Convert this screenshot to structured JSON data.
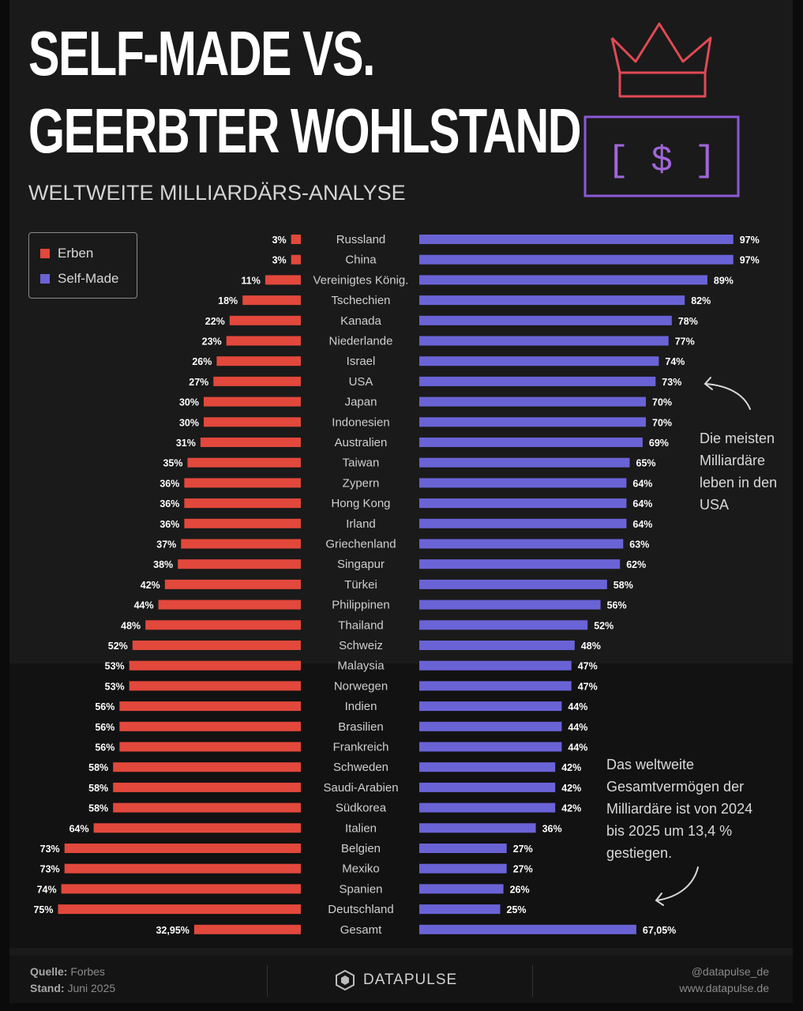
{
  "header": {
    "title_line1": "SELF-MADE VS.",
    "title_line2": "GEERBTER WOHLSTAND",
    "subtitle": "WELTWEITE MILLIARDÄRS-ANALYSE",
    "icon_top": "crown-icon",
    "icon_bottom": "money-bill-icon",
    "dollar_glyph": "[ $ ]"
  },
  "colors": {
    "erben": "#e2483b",
    "self_made": "#6a63d6",
    "crown": "#e04a55",
    "bill": "#8a5ad6"
  },
  "legend": {
    "erben": "Erben",
    "self_made": "Self-Made"
  },
  "chart_data": {
    "type": "bar",
    "orientation": "horizontal-diverging",
    "title": "SELF-MADE VS. GEERBTER WOHLSTAND",
    "subtitle": "WELTWEITE MILLIARDÄRS-ANALYSE",
    "unit": "%",
    "categories": [
      "Russland",
      "China",
      "Vereinigtes König.",
      "Tschechien",
      "Kanada",
      "Niederlande",
      "Israel",
      "USA",
      "Japan",
      "Indonesien",
      "Australien",
      "Taiwan",
      "Zypern",
      "Hong Kong",
      "Irland",
      "Griechenland",
      "Singapur",
      "Türkei",
      "Philippinen",
      "Thailand",
      "Schweiz",
      "Malaysia",
      "Norwegen",
      "Indien",
      "Brasilien",
      "Frankreich",
      "Schweden",
      "Saudi-Arabien",
      "Südkorea",
      "Italien",
      "Belgien",
      "Mexiko",
      "Spanien",
      "Deutschland",
      "Gesamt"
    ],
    "series": [
      {
        "name": "Erben",
        "values": [
          3,
          3,
          11,
          18,
          22,
          23,
          26,
          27,
          30,
          30,
          31,
          35,
          36,
          36,
          36,
          37,
          38,
          42,
          44,
          48,
          52,
          53,
          53,
          56,
          56,
          56,
          58,
          58,
          58,
          64,
          73,
          73,
          74,
          75,
          32.95
        ],
        "labels": [
          "3%",
          "3%",
          "11%",
          "18%",
          "22%",
          "23%",
          "26%",
          "27%",
          "30%",
          "30%",
          "31%",
          "35%",
          "36%",
          "36%",
          "36%",
          "37%",
          "38%",
          "42%",
          "44%",
          "48%",
          "52%",
          "53%",
          "53%",
          "56%",
          "56%",
          "56%",
          "58%",
          "58%",
          "58%",
          "64%",
          "73%",
          "73%",
          "74%",
          "75%",
          "32,95%"
        ]
      },
      {
        "name": "Self-Made",
        "values": [
          97,
          97,
          89,
          82,
          78,
          77,
          74,
          73,
          70,
          70,
          69,
          65,
          64,
          64,
          64,
          63,
          62,
          58,
          56,
          52,
          48,
          47,
          47,
          44,
          44,
          44,
          42,
          42,
          42,
          36,
          27,
          27,
          26,
          25,
          67.05
        ],
        "labels": [
          "97%",
          "97%",
          "89%",
          "82%",
          "78%",
          "77%",
          "74%",
          "73%",
          "70%",
          "70%",
          "69%",
          "65%",
          "64%",
          "64%",
          "64%",
          "63%",
          "62%",
          "58%",
          "56%",
          "52%",
          "48%",
          "47%",
          "47%",
          "44%",
          "44%",
          "44%",
          "42%",
          "42%",
          "42%",
          "36%",
          "27%",
          "27%",
          "26%",
          "25%",
          "67,05%"
        ]
      }
    ],
    "xlim": [
      0,
      100
    ],
    "legend_position": "top-left"
  },
  "annotations": {
    "usa_note": [
      "Die meisten",
      "Milliardäre",
      "leben in den",
      "USA"
    ],
    "growth_note": [
      "Das weltweite",
      "Gesamtvermögen der",
      "Milliardäre ist von 2024",
      "bis 2025 um 13,4 %",
      "gestiegen."
    ]
  },
  "footer": {
    "source_label": "Quelle:",
    "source_value": "Forbes",
    "date_label": "Stand:",
    "date_value": "Juni 2025",
    "brand": "DATAPULSE",
    "handle": "@datapulse_de",
    "website": "www.datapulse.de"
  }
}
